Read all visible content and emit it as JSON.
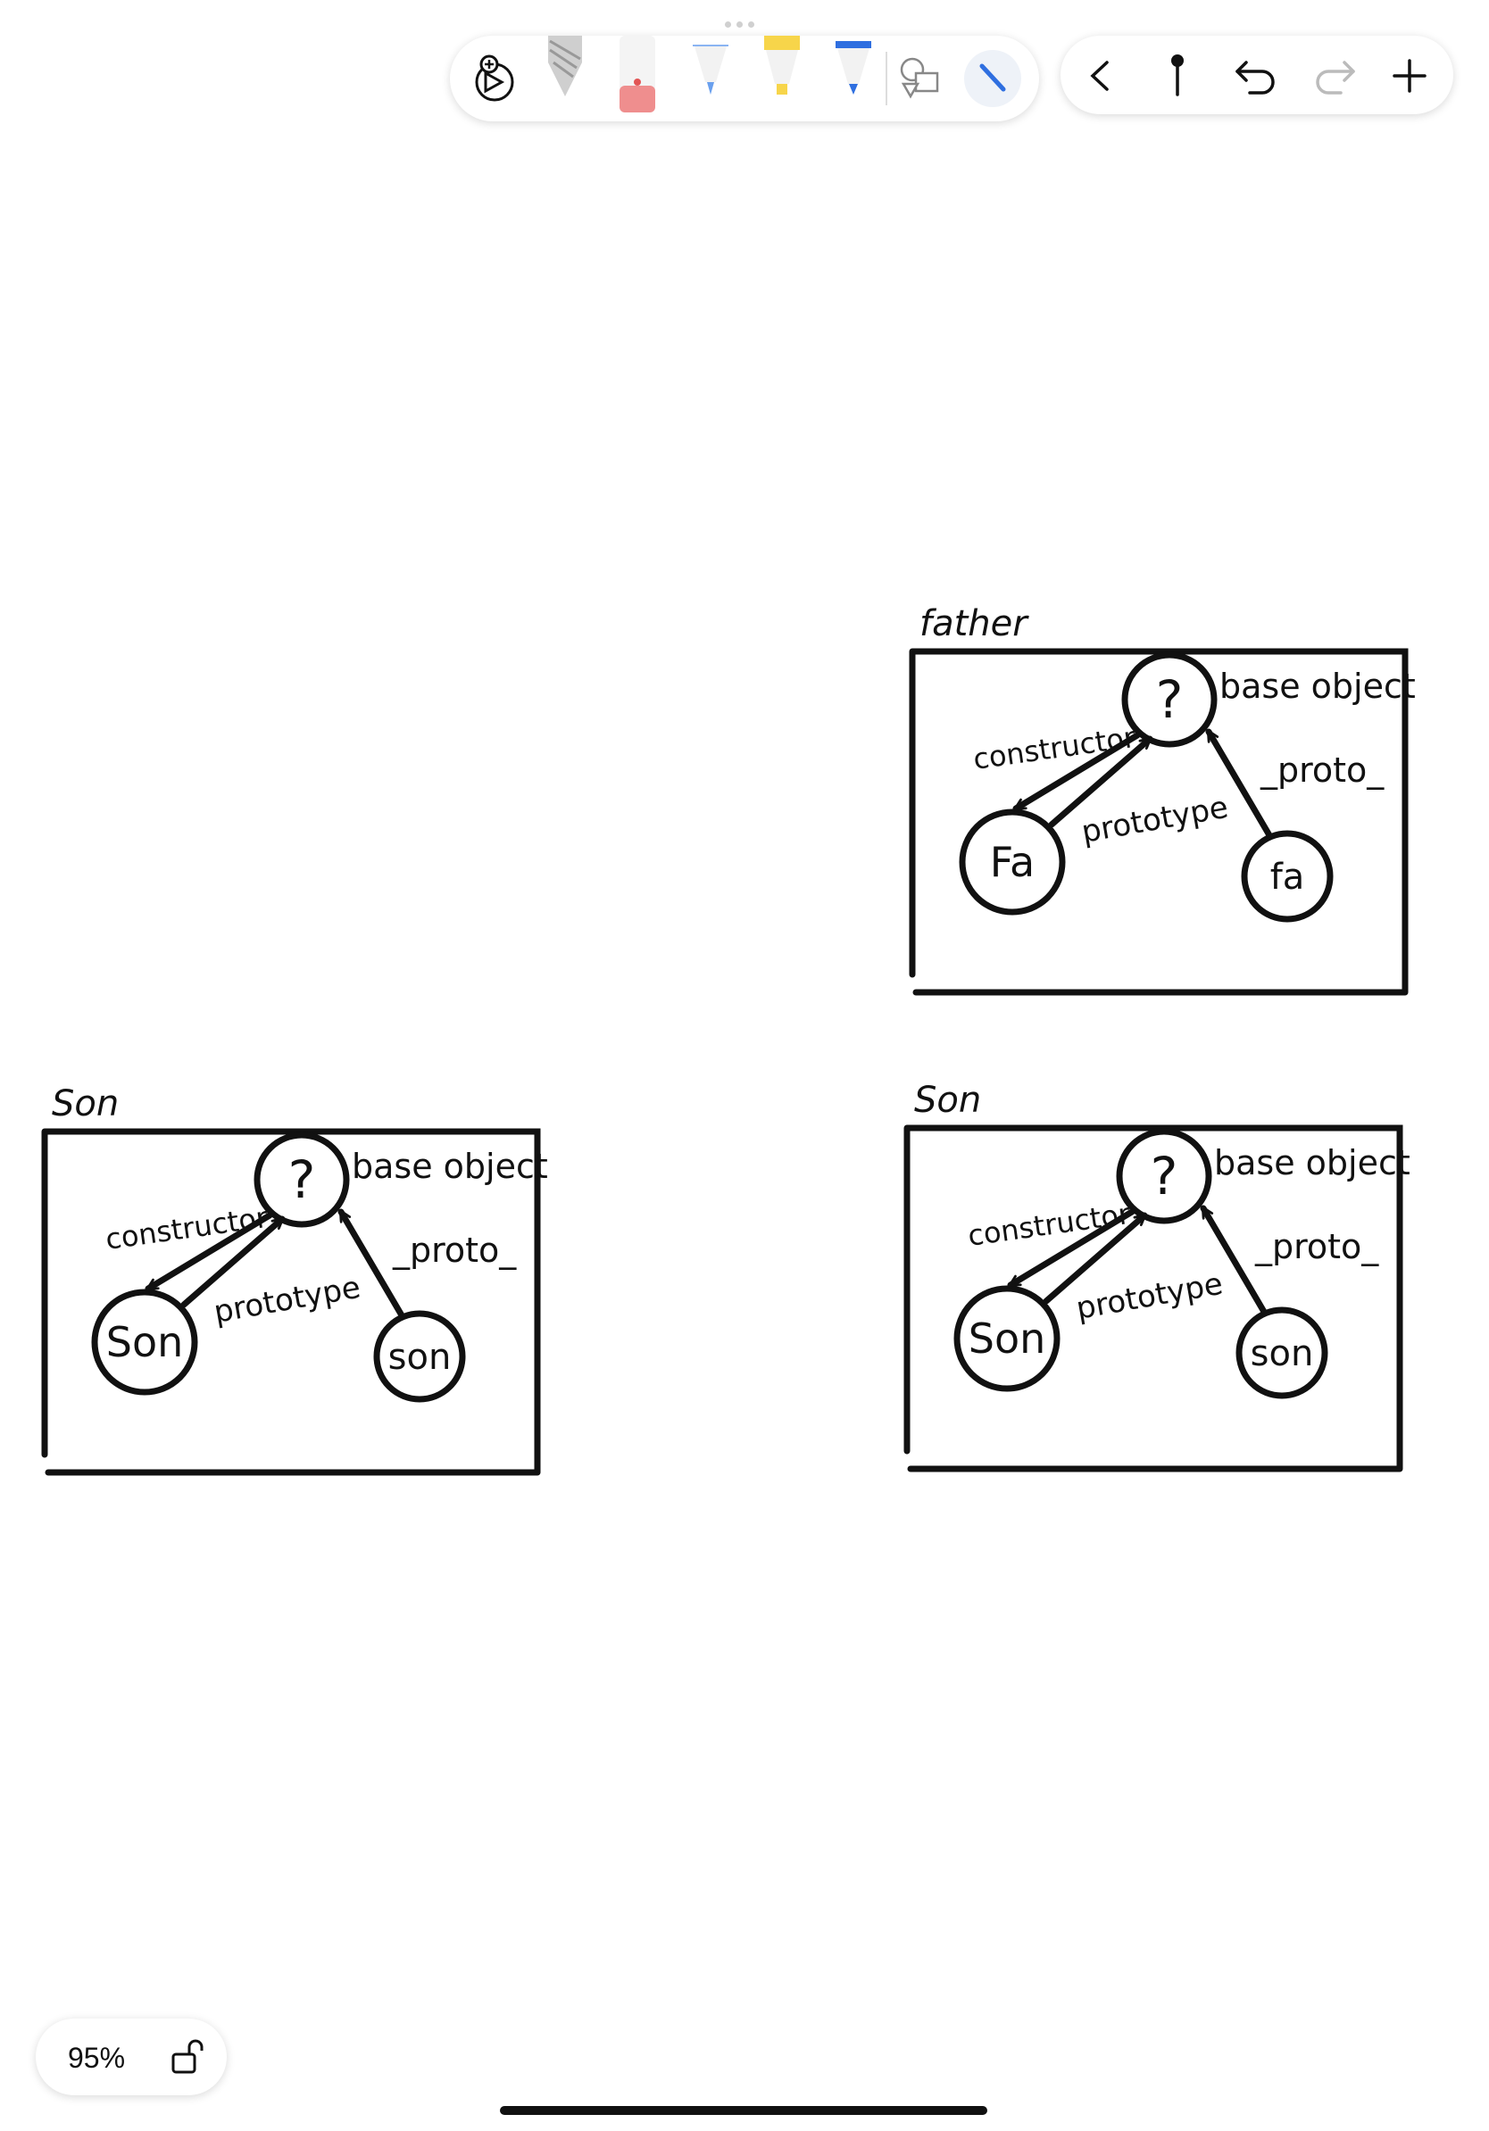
{
  "toolbar": {
    "tools": [
      {
        "icon": "drawing-lasso-icon"
      },
      {
        "icon": "pencil-icon"
      },
      {
        "icon": "eraser-icon"
      },
      {
        "icon": "fine-pen-icon"
      },
      {
        "icon": "highlighter-icon",
        "color": "#F7D54A"
      },
      {
        "icon": "marker-icon",
        "color": "#2F6FE0"
      },
      {
        "icon": "shapes-icon"
      },
      {
        "icon": "pen-selected-icon",
        "color": "#2F6FE0"
      }
    ],
    "nav": [
      {
        "icon": "back-icon"
      },
      {
        "icon": "pin-icon"
      },
      {
        "icon": "undo-icon"
      },
      {
        "icon": "redo-icon"
      },
      {
        "icon": "add-icon"
      }
    ]
  },
  "diagrams": [
    {
      "title": "father",
      "center": "?",
      "center_label": "base object",
      "left_node": "Fa",
      "right_node": "fa",
      "edge_constructor": "constructor",
      "edge_prototype": "prototype",
      "edge_proto": "_proto_"
    },
    {
      "title": "Son",
      "center": "?",
      "center_label": "base object",
      "left_node": "Son",
      "right_node": "son",
      "edge_constructor": "constructor",
      "edge_prototype": "prototype",
      "edge_proto": "_proto_"
    },
    {
      "title": "Son",
      "center": "?",
      "center_label": "base object",
      "left_node": "Son",
      "right_node": "son",
      "edge_constructor": "constructor",
      "edge_prototype": "prototype",
      "edge_proto": "_proto_"
    }
  ],
  "zoom": {
    "label": "95%",
    "icon": "unlock-icon"
  }
}
